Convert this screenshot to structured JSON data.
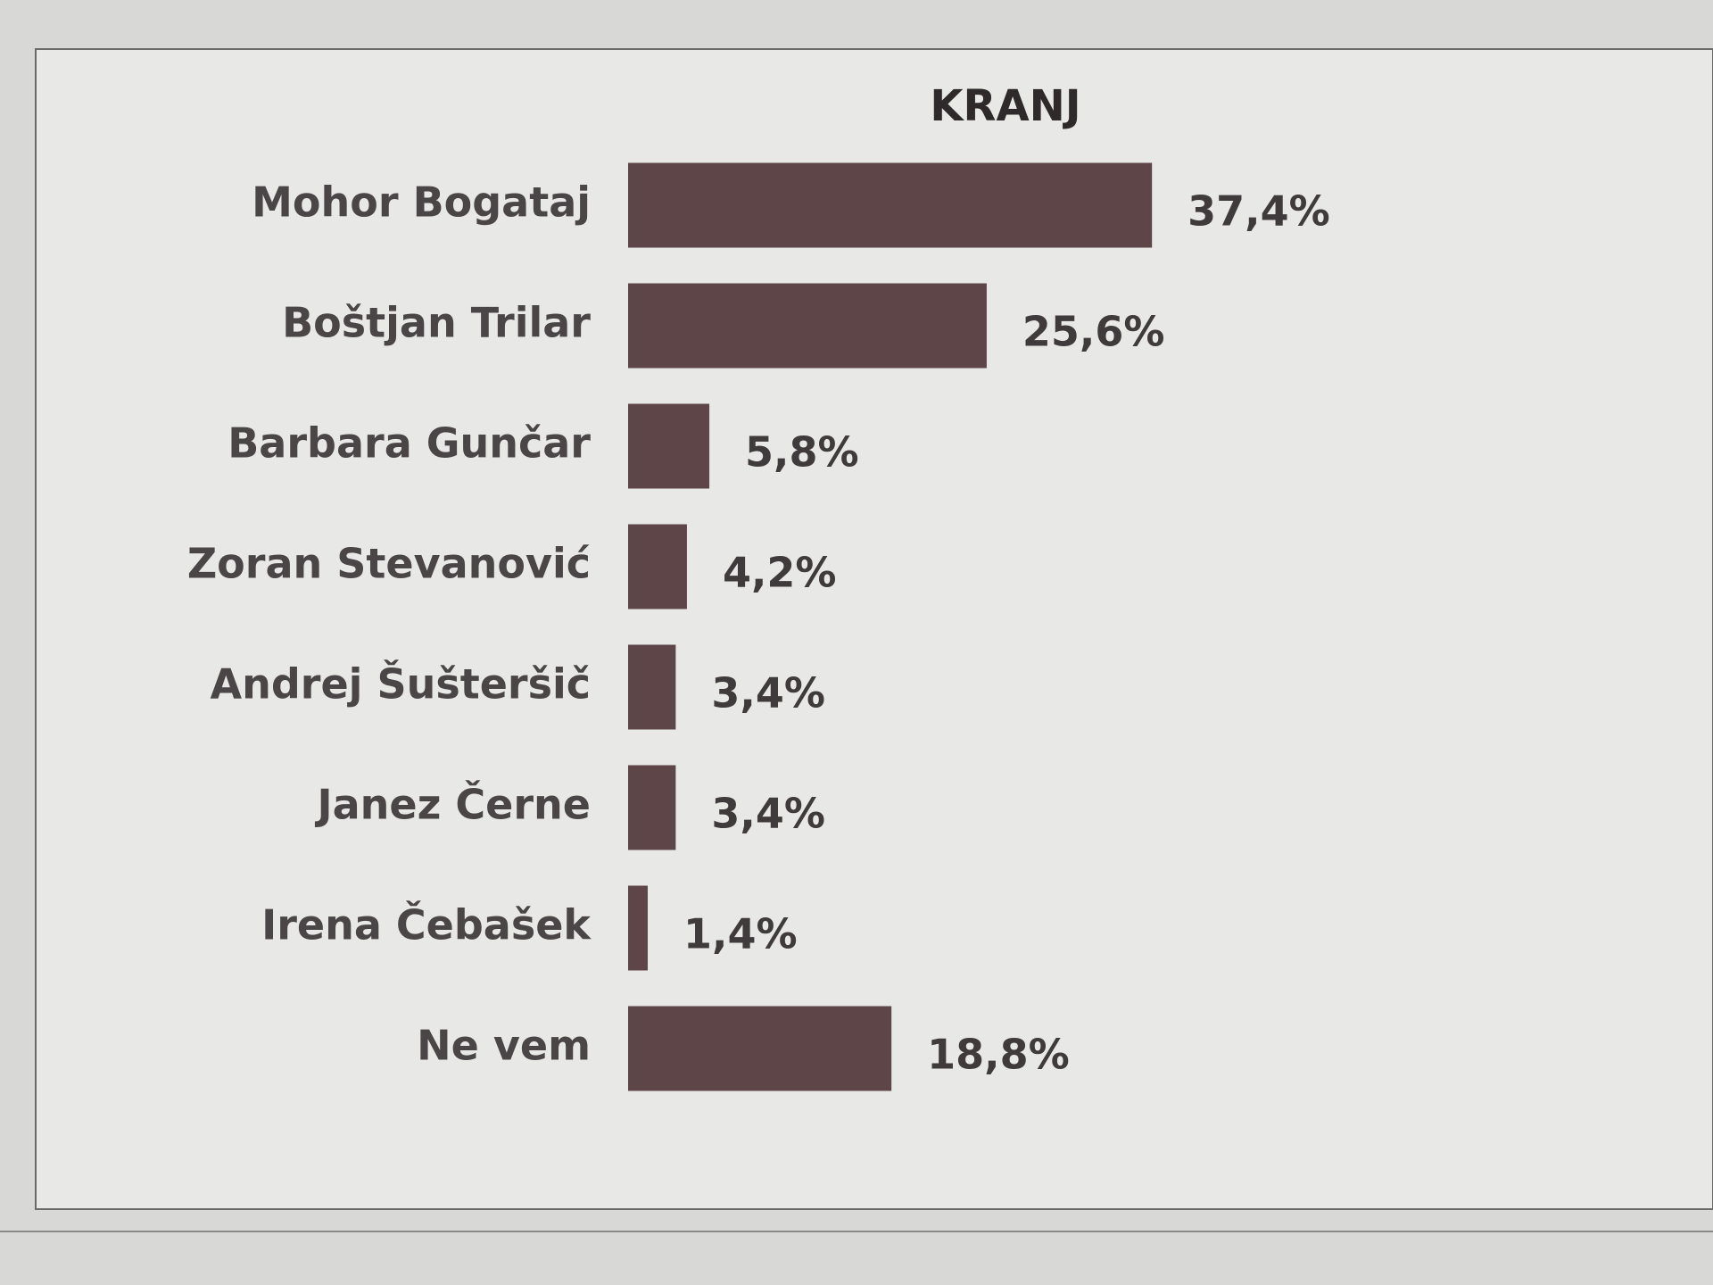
{
  "chart_data": {
    "type": "hbar",
    "title": "KRANJ",
    "categories": [
      "Mohor Bogataj",
      "Boštjan Trilar",
      "Barbara Gunčar",
      "Zoran Stevanović",
      "Andrej Šušteršič",
      "Janez Černe",
      "Irena Čebašek",
      "Ne vem"
    ],
    "values": [
      37.4,
      25.6,
      5.8,
      4.2,
      3.4,
      3.4,
      1.4,
      18.8
    ],
    "value_labels": [
      "37,4%",
      "25,6%",
      "5,8%",
      "4,2%",
      "3,4%",
      "3,4%",
      "1,4%",
      "18,8%"
    ],
    "color": "#5e4548"
  }
}
